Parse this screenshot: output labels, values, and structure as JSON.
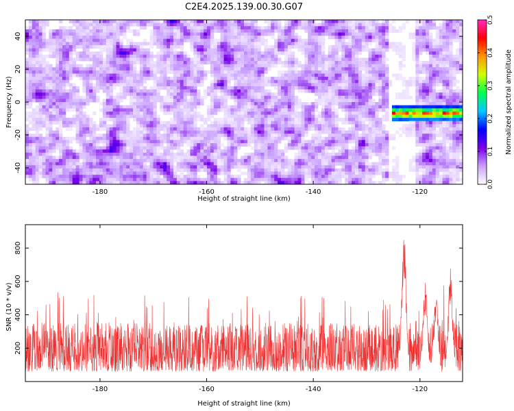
{
  "title": "C2E4.2025.139.00.30.G07",
  "chart_data": [
    {
      "type": "heatmap",
      "xlabel": "Height of straight line (km)",
      "ylabel": "Frequency (Hz)",
      "xlim": [
        -194,
        -112
      ],
      "ylim": [
        -50,
        50
      ],
      "xticks": [
        -180,
        -160,
        -140,
        -120
      ],
      "yticks": [
        -40,
        -20,
        0,
        20,
        40
      ],
      "grid": false,
      "colorbar": {
        "label": "Normalized spectral amplitude",
        "range": [
          0.0,
          0.5
        ],
        "ticks": [
          0.0,
          0.1,
          0.2,
          0.3,
          0.4,
          0.5
        ],
        "colors": [
          "#ffffff",
          "#c9a0ff",
          "#7a00e6",
          "#0000ff",
          "#00c8ff",
          "#00ff50",
          "#d2ff00",
          "#ff9600",
          "#ff0000",
          "#ff2ac8"
        ]
      },
      "background_amplitude": [
        0.0,
        0.15
      ],
      "signal_band": {
        "x_start": -125,
        "x_end": -112,
        "frequency_hz": -7,
        "amplitude_range": [
          0.15,
          0.45
        ]
      }
    },
    {
      "type": "line",
      "xlabel": "Height of straight line (km)",
      "ylabel": "SNR (10 * v/v)",
      "xlim": [
        -194,
        -112
      ],
      "ylim": [
        0,
        940
      ],
      "xticks": [
        -180,
        -160,
        -140,
        -120
      ],
      "yticks": [
        200,
        400,
        600,
        800
      ],
      "grid": false,
      "color": "#ee3030",
      "baseline_range": [
        60,
        350
      ],
      "typical_peak_range": [
        350,
        540
      ],
      "peaks": [
        {
          "x": -123.0,
          "y": 930
        },
        {
          "x": -114.3,
          "y": 680
        },
        {
          "x": -119.0,
          "y": 600
        },
        {
          "x": -117.0,
          "y": 560
        }
      ]
    }
  ]
}
